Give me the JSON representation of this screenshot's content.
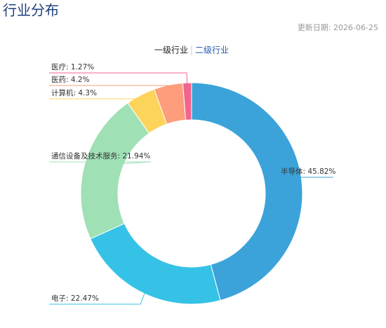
{
  "title": "行业分布",
  "update_date": "更新日期: 2026-06-25",
  "tabs": [
    "一级行业",
    "二级行业"
  ],
  "chart_data": {
    "type": "donut",
    "categories": [
      "半导体",
      "电子",
      "通信设备及技术服务",
      "计算机",
      "医药",
      "医疗"
    ],
    "values": [
      45.82,
      22.47,
      21.94,
      4.3,
      4.2,
      1.27
    ],
    "value_labels": [
      "半导体: 45.82%",
      "电子: 22.47%",
      "通信设备及技术服务: 21.94%",
      "计算机: 4.3%",
      "医药: 4.2%",
      "医疗: 1.27%"
    ],
    "colors": [
      "#3ba3d9",
      "#36c2e6",
      "#9fe0b5",
      "#fcd45c",
      "#fd9d7c",
      "#f0658f"
    ]
  }
}
